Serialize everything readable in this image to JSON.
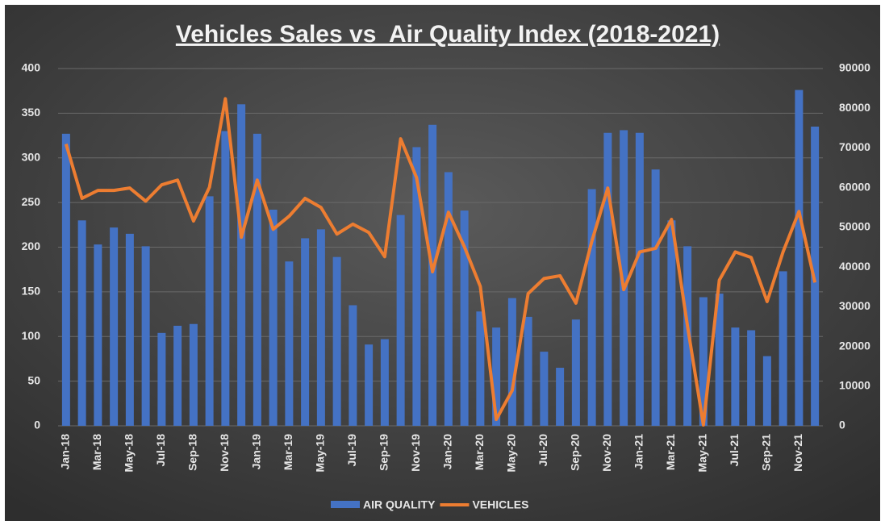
{
  "chart_data": {
    "type": "bar-line",
    "title": "Vehicles Sales vs  Air Quality Index (2018-2021)",
    "categories": [
      "Jan-18",
      null,
      "Mar-18",
      null,
      "May-18",
      null,
      "Jul-18",
      null,
      "Sep-18",
      null,
      "Nov-18",
      null,
      "Jan-19",
      null,
      "Mar-19",
      null,
      "May-19",
      null,
      "Jul-19",
      null,
      "Sep-19",
      null,
      "Nov-19",
      null,
      "Jan-20",
      null,
      "Mar-20",
      null,
      "May-20",
      null,
      "Jul-20",
      null,
      "Sep-20",
      null,
      "Nov-20",
      null,
      "Jan-21",
      null,
      "Mar-21",
      null,
      "May-21",
      null,
      "Jul-21",
      null,
      "Sep-21",
      null,
      "Nov-21",
      null
    ],
    "series": [
      {
        "name": "AIR QUALITY",
        "type": "bar",
        "color": "#4472c4",
        "values": [
          327,
          230,
          203,
          222,
          215,
          201,
          104,
          112,
          114,
          257,
          330,
          360,
          327,
          242,
          184,
          210,
          220,
          189,
          135,
          91,
          97,
          236,
          312,
          337,
          284,
          241,
          128,
          110,
          143,
          122,
          83,
          65,
          119,
          265,
          328,
          331,
          328,
          287,
          230,
          201,
          144,
          148,
          110,
          107,
          78,
          173,
          376,
          335
        ]
      },
      {
        "name": "VEHICLES",
        "type": "line",
        "axis": "y2",
        "color": "#ed7d31",
        "values": [
          71000,
          57300,
          59300,
          59300,
          59900,
          56600,
          60700,
          61900,
          51600,
          60100,
          82400,
          47500,
          61900,
          49500,
          52800,
          57300,
          55000,
          48300,
          50800,
          48700,
          42600,
          72300,
          62500,
          38800,
          53800,
          45100,
          35100,
          1600,
          8900,
          33300,
          37100,
          37800,
          30900,
          46500,
          59900,
          34300,
          43800,
          44700,
          52000,
          25200,
          200,
          36700,
          43800,
          42400,
          31300,
          43800,
          54000,
          36100
        ]
      }
    ],
    "ylim": [
      0,
      400
    ],
    "yticks": [
      0,
      50,
      100,
      150,
      200,
      250,
      300,
      350,
      400
    ],
    "y2lim": [
      0,
      90000
    ],
    "y2ticks": [
      0,
      10000,
      20000,
      30000,
      40000,
      50000,
      60000,
      70000,
      80000,
      90000
    ],
    "grid": true,
    "legend": "bottom"
  }
}
